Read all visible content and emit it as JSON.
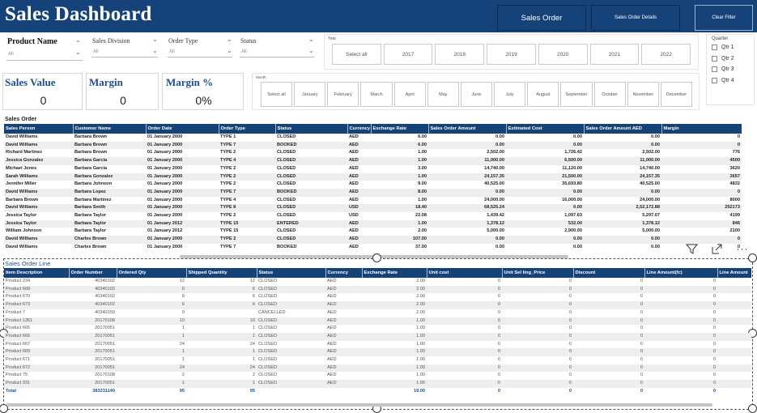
{
  "header": {
    "title": "Sales Dashboard",
    "sales_order_btn": "Sales Order",
    "sales_order_details_btn": "Sales Order Details",
    "clear_filter_btn": "Clear Filter"
  },
  "filters": [
    {
      "label": "Product Name",
      "value": "All"
    },
    {
      "label": "Sales Division",
      "value": "All"
    },
    {
      "label": "Order Type",
      "value": "All"
    },
    {
      "label": "Status",
      "value": "All"
    }
  ],
  "year_slicer": {
    "label": "Year",
    "options": [
      "Select all",
      "2017",
      "2018",
      "2019",
      "2020",
      "2021",
      "2022"
    ]
  },
  "month_slicer": {
    "label": "Month",
    "options": [
      "Select all",
      "January",
      "February",
      "March",
      "April",
      "May",
      "June",
      "July",
      "August",
      "September",
      "October",
      "November",
      "December"
    ]
  },
  "quarter_slicer": {
    "label": "Quarter",
    "options": [
      "Qtr 1",
      "Qtr 2",
      "Qtr 3",
      "Qtr 4"
    ]
  },
  "kpis": [
    {
      "label": "Sales Value",
      "value": "0"
    },
    {
      "label": "Margin",
      "value": "0"
    },
    {
      "label": "Margin %",
      "value": "0%"
    }
  ],
  "sales_order": {
    "title": "Sales Order",
    "columns": [
      "Sales Person",
      "Customer Name",
      "Order Date",
      "Order Type",
      "Status",
      "Currency",
      "Exchange Rate",
      "Sales Order Amount",
      "Estimated Cost",
      "Sales Order Amount AED",
      "Margin"
    ],
    "rows": [
      [
        "David Williams",
        "Barbara Brown",
        "01 January 2000",
        "TYPE 1",
        "CLOSED",
        "AED",
        "6.00",
        "0.00",
        "0.00",
        "0.00",
        "0"
      ],
      [
        "David Williams",
        "Barbara Brown",
        "01 January 2000",
        "TYPE 7",
        "BOOKED",
        "AED",
        "6.00",
        "0.00",
        "0.00",
        "0.00",
        "0"
      ],
      [
        "Richard Martinez",
        "Barbara Brown",
        "01 January 2000",
        "TYPE 2",
        "CLOSED",
        "AED",
        "1.00",
        "2,502.00",
        "1,726.42",
        "2,502.00",
        "776"
      ],
      [
        "Jessica Gonzalez",
        "Barbara Garcia",
        "01 January 2000",
        "TYPE 4",
        "CLOSED",
        "AED",
        "1.00",
        "11,000.00",
        "6,500.00",
        "11,000.00",
        "4500"
      ],
      [
        "Michael Jones",
        "Barbara Garcia",
        "01 January 2000",
        "TYPE 2",
        "CLOSED",
        "AED",
        "3.00",
        "14,740.00",
        "11,120.00",
        "14,740.00",
        "3620"
      ],
      [
        "Sarah Williams",
        "Barbara Gonzalez",
        "01 January 2000",
        "TYPE 2",
        "CLOSED",
        "AED",
        "1.00",
        "24,157.35",
        "21,500.00",
        "24,157.35",
        "2657"
      ],
      [
        "Jennifer Miller",
        "Barbara Johnson",
        "01 January 2000",
        "TYPE 2",
        "CLOSED",
        "AED",
        "9.00",
        "40,525.00",
        "35,693.80",
        "40,525.00",
        "4832"
      ],
      [
        "David Williams",
        "Barbara Lopez",
        "01 January 2000",
        "TYPE 7",
        "BOOKED",
        "AED",
        "8.00",
        "0.00",
        "0.00",
        "0.00",
        "0"
      ],
      [
        "Barbara Brown",
        "Barbara Martinez",
        "01 January 2000",
        "TYPE 4",
        "CLOSED",
        "AED",
        "1.00",
        "24,000.00",
        "16,000.00",
        "24,000.00",
        "8000"
      ],
      [
        "David Williams",
        "Barbara Smith",
        "01 January 2000",
        "TYPE 8",
        "CLOSED",
        "USD",
        "18.40",
        "68,525.24",
        "0.00",
        "2,52,172.88",
        "252173"
      ],
      [
        "Jessica Taylor",
        "Barbara Taylor",
        "01 January 2000",
        "TYPE 2",
        "CLOSED",
        "USD",
        "22.08",
        "1,439.42",
        "1,097.63",
        "5,297.07",
        "4199"
      ],
      [
        "Jessica Taylor",
        "Barbara Taylor",
        "01 January 2012",
        "TYPE 15",
        "ENTERED",
        "AED",
        "1.00",
        "1,378.12",
        "532.00",
        "1,378.12",
        "846"
      ],
      [
        "William Johnson",
        "Barbara Taylor",
        "01 January 2012",
        "TYPE 15",
        "CLOSED",
        "AED",
        "2.00",
        "5,000.00",
        "2,900.00",
        "5,000.00",
        "2100"
      ],
      [
        "David Williams",
        "Charles Brown",
        "01 January 2000",
        "TYPE 2",
        "CLOSED",
        "AED",
        "107.00",
        "0.00",
        "0.00",
        "0.00",
        "0"
      ],
      [
        "David Williams",
        "Charles Brown",
        "01 January 2000",
        "TYPE 7",
        "BOOKED",
        "AED",
        "37.00",
        "0.00",
        "0.00",
        "0.00",
        "0"
      ]
    ]
  },
  "sales_order_line": {
    "title": "Sales Order Line",
    "columns": [
      "Item Description",
      "Order Number",
      "Ordered Qty",
      "Shipped Quantity",
      "Status",
      "Currency",
      "Exchange Rate",
      "Unit cost",
      "Unit Sel ling_Price",
      "Discount",
      "Line Amount(fc)",
      "Line Amount"
    ],
    "rows": [
      [
        "Product 224",
        "40340102",
        "12",
        "12",
        "CLOSED",
        "AED",
        "2.00",
        "0",
        "0",
        "0",
        "0",
        "0"
      ],
      [
        "Product 668",
        "40340102",
        "6",
        "6",
        "CLOSED",
        "AED",
        "2.00",
        "0",
        "0",
        "0",
        "0",
        "0"
      ],
      [
        "Product 670",
        "40340102",
        "6",
        "6",
        "CLOSED",
        "AED",
        "2.00",
        "0",
        "0",
        "0",
        "0",
        "0"
      ],
      [
        "Product 673",
        "40340102",
        "6",
        "6",
        "CLOSED",
        "AED",
        "2.00",
        "0",
        "0",
        "0",
        "0",
        "0"
      ],
      [
        "Product 7",
        "40340159",
        "0",
        "",
        "CANCELLED",
        "AED",
        "2.00",
        "0",
        "0",
        "0",
        "0",
        "0"
      ],
      [
        "Product 1361",
        "20170108",
        "10",
        "10",
        "CLOSED",
        "AED",
        "1.00",
        "0",
        "0",
        "0",
        "0",
        "0"
      ],
      [
        "Product 665",
        "20170051",
        "1",
        "1",
        "CLOSED",
        "AED",
        "1.00",
        "0",
        "0",
        "0",
        "0",
        "0"
      ],
      [
        "Product 666",
        "20170051",
        "1",
        "1",
        "CLOSED",
        "AED",
        "1.00",
        "0",
        "0",
        "0",
        "0",
        "0"
      ],
      [
        "Product 667",
        "20170051",
        "24",
        "24",
        "CLOSED",
        "AED",
        "1.00",
        "0",
        "0",
        "0",
        "0",
        "0"
      ],
      [
        "Product 669",
        "20170051",
        "1",
        "1",
        "CLOSED",
        "AED",
        "1.00",
        "0",
        "0",
        "0",
        "0",
        "0"
      ],
      [
        "Product 671",
        "20170051",
        "1",
        "1",
        "CLOSED",
        "AED",
        "1.00",
        "0",
        "0",
        "0",
        "0",
        "0"
      ],
      [
        "Product 672",
        "20170051",
        "24",
        "24",
        "CLOSED",
        "AED",
        "1.00",
        "0",
        "0",
        "0",
        "0",
        "0"
      ],
      [
        "Product 75",
        "20170108",
        "2",
        "2",
        "CLOSED",
        "AED",
        "1.00",
        "0",
        "0",
        "0",
        "0",
        "0"
      ],
      [
        "Product 931",
        "20170051",
        "1",
        "1",
        "CLOSED",
        "AED",
        "1.00",
        "0",
        "0",
        "0",
        "0",
        "0"
      ]
    ],
    "total": [
      "Total",
      "383231140",
      "95",
      "95",
      "",
      "",
      "19.00",
      "0",
      "0",
      "0",
      "0",
      "0"
    ]
  },
  "colors": {
    "header_bg": "#16427a",
    "accent": "#1e4e8c"
  },
  "icons": [
    "filter-icon",
    "focus-mode-icon",
    "more-options-icon"
  ]
}
